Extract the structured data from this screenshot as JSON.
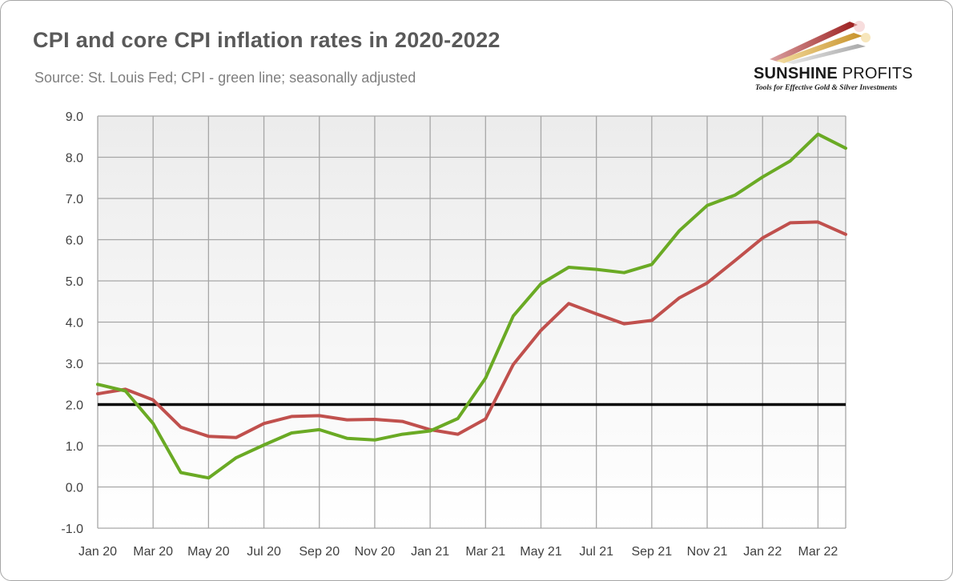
{
  "title": "CPI and core CPI inflation rates in 2020-2022",
  "subtitle": "Source: St. Louis Fed; CPI - green line; seasonally adjusted",
  "logo": {
    "name_part1": "SUNSHINE",
    "name_part2": "PROFITS",
    "tagline": "Tools for Effective Gold & Silver Investments",
    "icon": "stylized-arrows-logo-icon"
  },
  "colors": {
    "cpi": "#6aaa24",
    "core_cpi": "#c0504d",
    "target": "#000000",
    "grid": "#a6a6a6"
  },
  "chart_data": {
    "type": "line",
    "title": "CPI and core CPI inflation rates in 2020-2022",
    "xlabel": "",
    "ylabel": "",
    "ylim": [
      -1.0,
      9.0
    ],
    "yticks": [
      "-1.0",
      "0.0",
      "1.0",
      "2.0",
      "3.0",
      "4.0",
      "5.0",
      "6.0",
      "7.0",
      "8.0",
      "9.0"
    ],
    "x": [
      "Jan 20",
      "Feb 20",
      "Mar 20",
      "Apr 20",
      "May 20",
      "Jun 20",
      "Jul 20",
      "Aug 20",
      "Sep 20",
      "Oct 20",
      "Nov 20",
      "Dec 20",
      "Jan 21",
      "Feb 21",
      "Mar 21",
      "Apr 21",
      "May 21",
      "Jun 21",
      "Jul 21",
      "Aug 21",
      "Sep 21",
      "Oct 21",
      "Nov 21",
      "Dec 21",
      "Jan 22",
      "Feb 22",
      "Mar 22",
      "Apr 22"
    ],
    "xtick_labels": [
      "Jan 20",
      "Mar 20",
      "May 20",
      "Jul 20",
      "Sep 20",
      "Nov 20",
      "Jan 21",
      "Mar 21",
      "May 21",
      "Jul 21",
      "Sep 21",
      "Nov 21",
      "Jan 22",
      "Mar 22"
    ],
    "grid": true,
    "legend": "none",
    "series": [
      {
        "values": [
          2.49,
          2.33,
          1.54,
          0.35,
          0.22,
          0.71,
          1.02,
          1.31,
          1.39,
          1.18,
          1.14,
          1.28,
          1.36,
          1.66,
          2.64,
          4.15,
          4.93,
          5.33,
          5.28,
          5.2,
          5.4,
          6.22,
          6.83,
          7.08,
          7.52,
          7.91,
          8.56,
          8.22
        ]
      },
      {
        "values": [
          2.26,
          2.37,
          2.11,
          1.45,
          1.23,
          1.2,
          1.54,
          1.71,
          1.73,
          1.63,
          1.64,
          1.59,
          1.39,
          1.28,
          1.65,
          2.97,
          3.8,
          4.45,
          4.2,
          3.96,
          4.04,
          4.59,
          4.95,
          5.49,
          6.04,
          6.41,
          6.43,
          6.13
        ]
      }
    ],
    "reference_lines": [
      {
        "y": 2.0
      }
    ]
  }
}
